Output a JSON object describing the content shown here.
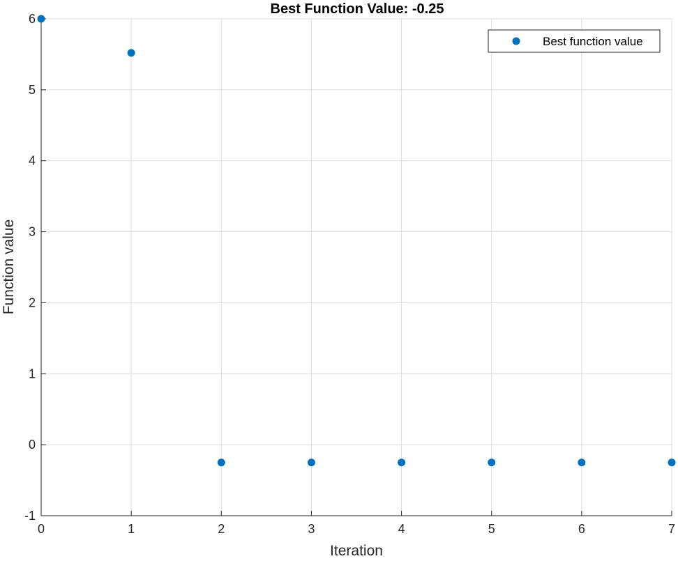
{
  "chart_data": {
    "type": "scatter",
    "title": "Best Function Value: -0.25",
    "xlabel": "Iteration",
    "ylabel": "Function value",
    "xlim": [
      0,
      7
    ],
    "ylim": [
      -1,
      6
    ],
    "xticks": [
      0,
      1,
      2,
      3,
      4,
      5,
      6,
      7
    ],
    "yticks": [
      -1,
      0,
      1,
      2,
      3,
      4,
      5,
      6
    ],
    "grid": true,
    "legend_position": "top-right",
    "series": [
      {
        "name": "Best function value",
        "color": "#0072BD",
        "marker": "circle",
        "x": [
          0,
          1,
          2,
          3,
          4,
          5,
          6,
          7
        ],
        "y": [
          6.0,
          5.52,
          -0.25,
          -0.25,
          -0.25,
          -0.25,
          -0.25,
          -0.25
        ]
      }
    ]
  }
}
